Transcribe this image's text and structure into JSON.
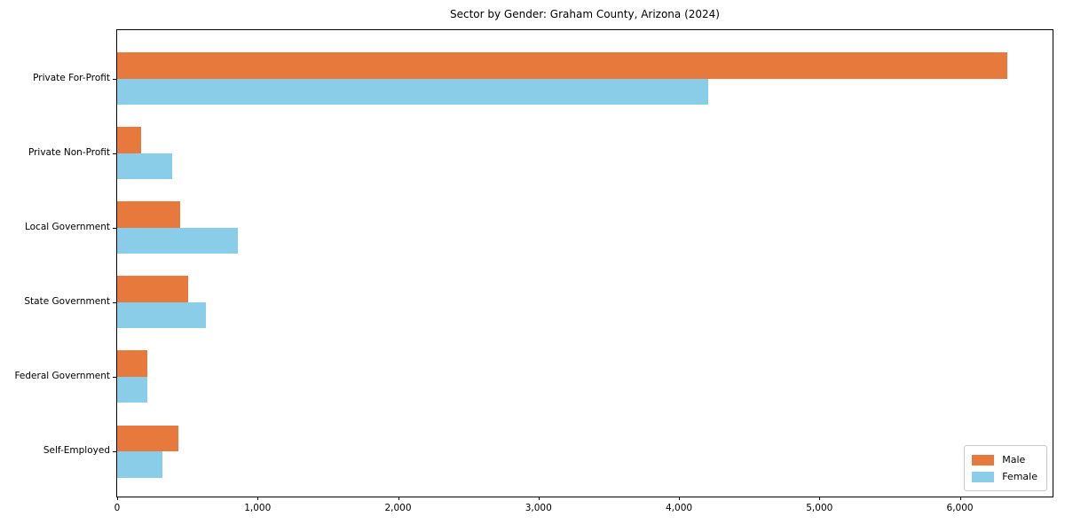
{
  "chart_data": {
    "type": "bar",
    "orientation": "horizontal",
    "title": "Sector by Gender: Graham County, Arizona (2024)",
    "categories": [
      "Private For-Profit",
      "Private Non-Profit",
      "Local Government",
      "State Government",
      "Federal Government",
      "Self-Employed"
    ],
    "series": [
      {
        "name": "Male",
        "color": "#e8793c",
        "values": [
          6340,
          170,
          450,
          505,
          215,
          435
        ]
      },
      {
        "name": "Female",
        "color": "#89cde9",
        "values": [
          4210,
          390,
          860,
          630,
          215,
          320
        ]
      }
    ],
    "xlabel": "",
    "ylabel": "",
    "xlim": [
      0,
      6660
    ],
    "xticks": [
      0,
      1000,
      2000,
      3000,
      4000,
      5000,
      6000
    ],
    "xtick_labels": [
      "0",
      "1,000",
      "2,000",
      "3,000",
      "4,000",
      "5,000",
      "6,000"
    ],
    "grid": false,
    "legend": {
      "position": "lower right"
    }
  }
}
